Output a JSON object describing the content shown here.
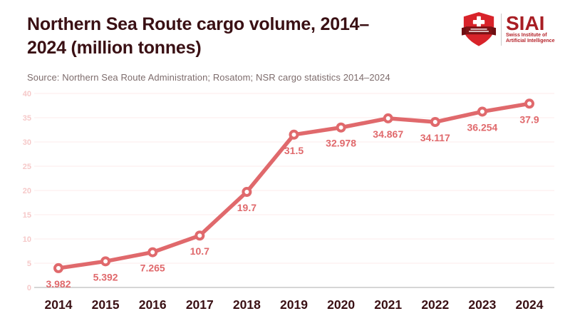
{
  "header": {
    "title_line1": "Northern Sea Route cargo volume, 2014–",
    "title_line2": "2024 (million tonnes)",
    "source": "Source: Northern Sea Route Administration; Rosatom; NSR cargo statistics 2014–2024"
  },
  "logo": {
    "name": "SIAI",
    "tagline_line1": "Swiss Institute of",
    "tagline_line2": "Artificial Intelligence"
  },
  "colors": {
    "title_text": "#3a1014",
    "source_text": "#7d6c6c",
    "line": "#e0696c",
    "data_label": "#e0696c",
    "y_tick_label": "#f6c9c9",
    "gridline": "#fcebeb",
    "zero_axis": "#bdbdbd",
    "x_tick_label": "#3a1014",
    "marker_fill": "#ffffff",
    "logo_shield": "#d8232a",
    "logo_banner": "#7e1215",
    "logo_text": "#a81e24"
  },
  "chart_data": {
    "type": "line",
    "title": "Northern Sea Route cargo volume, 2014–2024 (million tonnes)",
    "categories": [
      "2014",
      "2015",
      "2016",
      "2017",
      "2018",
      "2019",
      "2020",
      "2021",
      "2022",
      "2023",
      "2024"
    ],
    "values": [
      3.982,
      5.392,
      7.265,
      10.7,
      19.7,
      31.5,
      32.978,
      34.867,
      34.117,
      36.254,
      37.9
    ],
    "point_labels": [
      "3.982",
      "5.392",
      "7.265",
      "10.7",
      "19.7",
      "31.5",
      "32.978",
      "34.867",
      "34.117",
      "36.254",
      "37.9"
    ],
    "xlabel": "",
    "ylabel": "",
    "ylim": [
      0,
      40
    ],
    "ytick_step": 5,
    "yticks": [
      0,
      5,
      10,
      15,
      20,
      25,
      30,
      35,
      40
    ],
    "grid": true,
    "legend": "none",
    "marker": "open-circle"
  }
}
